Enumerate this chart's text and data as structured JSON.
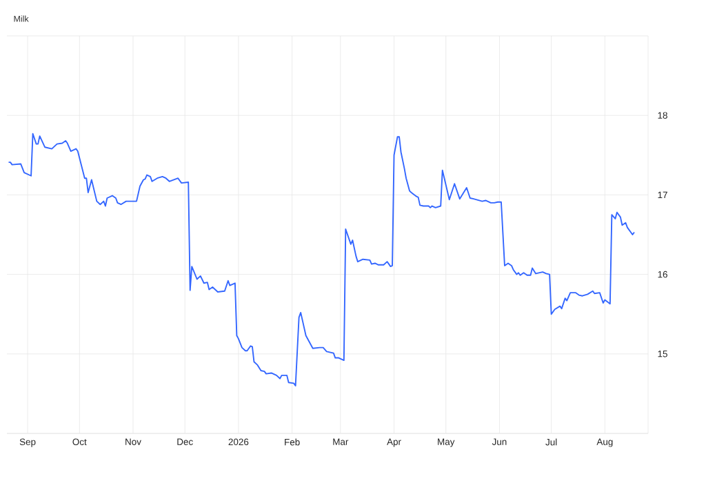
{
  "chart_data": {
    "type": "line",
    "title": "Milk",
    "x": [
      "2025-08-21",
      "2025-08-22",
      "2025-08-23",
      "2025-08-28",
      "2025-08-30",
      "2025-09-03",
      "2025-09-04",
      "2025-09-06",
      "2025-09-07",
      "2025-09-08",
      "2025-09-11",
      "2025-09-15",
      "2025-09-18",
      "2025-09-21",
      "2025-09-23",
      "2025-09-24",
      "2025-09-26",
      "2025-09-29",
      "2025-09-30",
      "2025-10-04",
      "2025-10-05",
      "2025-10-06",
      "2025-10-08",
      "2025-10-11",
      "2025-10-13",
      "2025-10-15",
      "2025-10-16",
      "2025-10-17",
      "2025-10-20",
      "2025-10-22",
      "2025-10-23",
      "2025-10-25",
      "2025-10-28",
      "2025-11-03",
      "2025-11-05",
      "2025-11-07",
      "2025-11-08",
      "2025-11-09",
      "2025-11-11",
      "2025-11-12",
      "2025-11-15",
      "2025-11-18",
      "2025-11-20",
      "2025-11-22",
      "2025-11-27",
      "2025-11-29",
      "2025-12-03",
      "2025-12-04",
      "2025-12-05",
      "2025-12-08",
      "2025-12-10",
      "2025-12-12",
      "2025-12-14",
      "2025-12-15",
      "2025-12-17",
      "2025-12-20",
      "2025-12-24",
      "2025-12-26",
      "2025-12-27",
      "2025-12-30",
      "2025-12-31",
      "2026-01-01",
      "2026-01-03",
      "2026-01-05",
      "2026-01-06",
      "2026-01-08",
      "2026-01-09",
      "2026-01-10",
      "2026-01-12",
      "2026-01-14",
      "2026-01-16",
      "2026-01-17",
      "2026-01-20",
      "2026-01-23",
      "2026-01-25",
      "2026-01-26",
      "2026-01-29",
      "2026-01-30",
      "2026-02-02",
      "2026-02-03",
      "2026-02-05",
      "2026-02-06",
      "2026-02-09",
      "2026-02-13",
      "2026-02-17",
      "2026-02-19",
      "2026-02-21",
      "2026-02-25",
      "2026-02-26",
      "2026-02-28",
      "2026-03-03",
      "2026-03-04",
      "2026-03-07",
      "2026-03-08",
      "2026-03-10",
      "2026-03-11",
      "2026-03-14",
      "2026-03-18",
      "2026-03-19",
      "2026-03-21",
      "2026-03-23",
      "2026-03-26",
      "2026-03-28",
      "2026-03-30",
      "2026-03-31",
      "2026-04-01",
      "2026-04-03",
      "2026-04-04",
      "2026-04-05",
      "2026-04-07",
      "2026-04-08",
      "2026-04-10",
      "2026-04-11",
      "2026-04-14",
      "2026-04-15",
      "2026-04-16",
      "2026-04-18",
      "2026-04-21",
      "2026-04-22",
      "2026-04-23",
      "2026-04-25",
      "2026-04-28",
      "2026-04-29",
      "2026-05-03",
      "2026-05-06",
      "2026-05-09",
      "2026-05-13",
      "2026-05-15",
      "2026-05-17",
      "2026-05-22",
      "2026-05-24",
      "2026-05-27",
      "2026-05-29",
      "2026-05-31",
      "2026-06-02",
      "2026-06-04",
      "2026-06-06",
      "2026-06-08",
      "2026-06-09",
      "2026-06-11",
      "2026-06-12",
      "2026-06-13",
      "2026-06-15",
      "2026-06-17",
      "2026-06-19",
      "2026-06-20",
      "2026-06-22",
      "2026-06-26",
      "2026-06-28",
      "2026-06-30",
      "2026-07-01",
      "2026-07-03",
      "2026-07-06",
      "2026-07-07",
      "2026-07-09",
      "2026-07-10",
      "2026-07-12",
      "2026-07-15",
      "2026-07-17",
      "2026-07-19",
      "2026-07-22",
      "2026-07-25",
      "2026-07-26",
      "2026-07-29",
      "2026-07-31",
      "2026-08-01",
      "2026-08-04",
      "2026-08-05",
      "2026-08-07",
      "2026-08-08",
      "2026-08-10",
      "2026-08-11",
      "2026-08-13",
      "2026-08-14",
      "2026-08-17",
      "2026-08-18"
    ],
    "series": [
      {
        "color": "#3366ff",
        "values": [
          17.41,
          17.41,
          17.38,
          17.39,
          17.28,
          17.24,
          17.77,
          17.64,
          17.64,
          17.74,
          17.6,
          17.58,
          17.64,
          17.65,
          17.68,
          17.65,
          17.55,
          17.58,
          17.55,
          17.21,
          17.21,
          17.03,
          17.19,
          16.92,
          16.88,
          16.92,
          16.86,
          16.96,
          16.99,
          16.96,
          16.9,
          16.88,
          16.92,
          16.92,
          17.11,
          17.19,
          17.2,
          17.25,
          17.23,
          17.17,
          17.21,
          17.23,
          17.21,
          17.17,
          17.21,
          17.15,
          17.16,
          15.8,
          16.1,
          15.94,
          15.98,
          15.89,
          15.9,
          15.81,
          15.84,
          15.78,
          15.79,
          15.92,
          15.86,
          15.89,
          15.23,
          15.19,
          15.08,
          15.04,
          15.04,
          15.1,
          15.09,
          14.9,
          14.86,
          14.79,
          14.78,
          14.75,
          14.76,
          14.73,
          14.69,
          14.73,
          14.73,
          14.64,
          14.63,
          14.6,
          15.46,
          15.52,
          15.23,
          15.07,
          15.08,
          15.08,
          15.03,
          15.01,
          14.95,
          14.95,
          14.92,
          16.57,
          16.38,
          16.43,
          16.23,
          16.16,
          16.19,
          16.18,
          16.13,
          16.14,
          16.12,
          16.12,
          16.16,
          16.1,
          16.11,
          17.5,
          17.73,
          17.73,
          17.54,
          17.33,
          17.21,
          17.05,
          17.03,
          16.98,
          16.97,
          16.87,
          16.86,
          16.86,
          16.84,
          16.86,
          16.84,
          16.86,
          17.31,
          16.94,
          17.14,
          16.95,
          17.09,
          16.96,
          16.95,
          16.92,
          16.93,
          16.9,
          16.9,
          16.91,
          16.91,
          16.11,
          16.14,
          16.11,
          16.06,
          16.0,
          16.02,
          15.99,
          16.02,
          15.99,
          15.99,
          16.08,
          16.01,
          16.03,
          16.01,
          16.0,
          15.5,
          15.56,
          15.6,
          15.57,
          15.7,
          15.67,
          15.77,
          15.77,
          15.74,
          15.73,
          15.75,
          15.79,
          15.76,
          15.77,
          15.64,
          15.68,
          15.63,
          16.75,
          16.7,
          16.78,
          16.72,
          16.62,
          16.65,
          16.59,
          16.5,
          16.53
        ]
      }
    ],
    "xlim": [
      "2025-08-20",
      "2026-08-26"
    ],
    "xticks": [
      {
        "value": "2025-09-01",
        "label": "Sep"
      },
      {
        "value": "2025-10-01",
        "label": "Oct"
      },
      {
        "value": "2025-11-01",
        "label": "Nov"
      },
      {
        "value": "2025-12-01",
        "label": "Dec"
      },
      {
        "value": "2026-01-01",
        "label": "2026"
      },
      {
        "value": "2026-02-01",
        "label": "Feb"
      },
      {
        "value": "2026-03-01",
        "label": "Mar"
      },
      {
        "value": "2026-04-01",
        "label": "Apr"
      },
      {
        "value": "2026-05-01",
        "label": "May"
      },
      {
        "value": "2026-06-01",
        "label": "Jun"
      },
      {
        "value": "2026-07-01",
        "label": "Jul"
      },
      {
        "value": "2026-08-01",
        "label": "Aug"
      }
    ],
    "ylim": [
      14,
      19
    ],
    "yticks": [
      {
        "value": 14,
        "label": null
      },
      15,
      16,
      17,
      18,
      {
        "value": 19,
        "label": null
      }
    ],
    "grid": true,
    "marker": "none",
    "line_style": "solid"
  }
}
